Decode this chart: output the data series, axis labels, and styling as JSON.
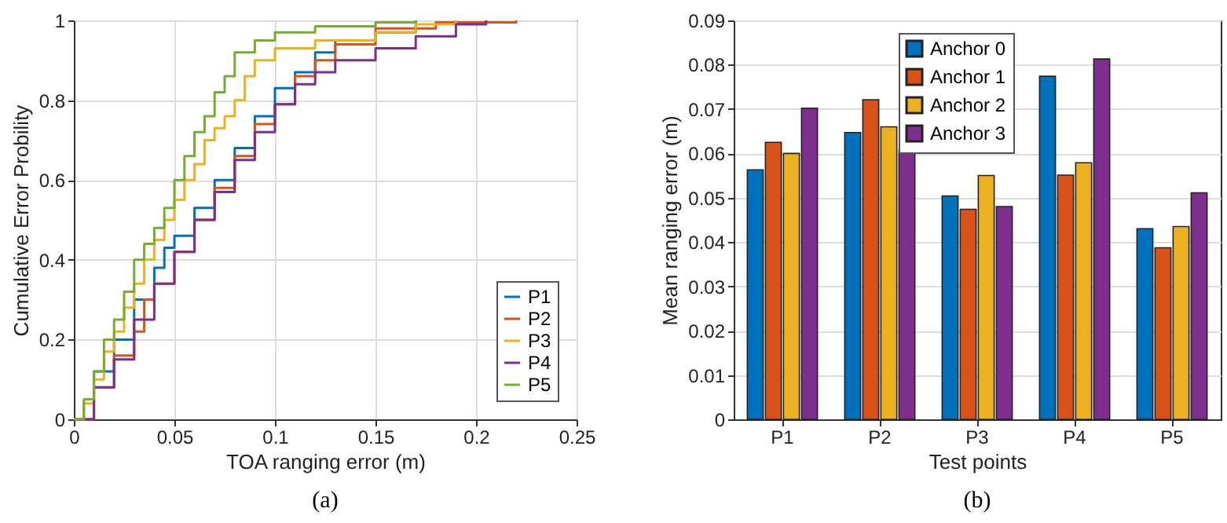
{
  "chart_data": [
    {
      "type": "step",
      "xlabel": "TOA ranging error (m)",
      "ylabel": "Cumulative Error Probility",
      "xlim": [
        0,
        0.25
      ],
      "xticks": [
        0,
        0.05,
        0.1,
        0.15,
        0.2,
        0.25
      ],
      "ylim": [
        0,
        1
      ],
      "yticks": [
        0,
        0.2,
        0.4,
        0.6,
        0.8,
        1
      ],
      "grid": true,
      "legend": "bottom right",
      "annotations": [
        "(a)"
      ],
      "series": [
        {
          "name": "P1",
          "color": "#0072bd",
          "x": [
            0,
            0.01,
            0.02,
            0.03,
            0.04,
            0.045,
            0.05,
            0.06,
            0.07,
            0.08,
            0.09,
            0.1,
            0.11,
            0.12,
            0.13,
            0.15,
            0.17
          ],
          "values": [
            0,
            0.12,
            0.2,
            0.3,
            0.38,
            0.43,
            0.46,
            0.53,
            0.6,
            0.68,
            0.76,
            0.83,
            0.87,
            0.92,
            0.95,
            0.97,
            1
          ]
        },
        {
          "name": "P2",
          "color": "#d95319",
          "x": [
            0,
            0.01,
            0.02,
            0.03,
            0.035,
            0.04,
            0.05,
            0.06,
            0.07,
            0.08,
            0.09,
            0.1,
            0.11,
            0.12,
            0.13,
            0.15,
            0.18,
            0.22
          ],
          "values": [
            0,
            0.08,
            0.16,
            0.22,
            0.3,
            0.34,
            0.42,
            0.5,
            0.58,
            0.66,
            0.74,
            0.79,
            0.86,
            0.9,
            0.94,
            0.98,
            0.995,
            1
          ]
        },
        {
          "name": "P3",
          "color": "#edb120",
          "x": [
            0,
            0.005,
            0.01,
            0.015,
            0.02,
            0.025,
            0.03,
            0.035,
            0.04,
            0.045,
            0.05,
            0.055,
            0.06,
            0.065,
            0.07,
            0.075,
            0.08,
            0.085,
            0.09,
            0.1,
            0.12,
            0.15,
            0.17,
            0.19
          ],
          "values": [
            0,
            0.04,
            0.1,
            0.17,
            0.22,
            0.28,
            0.34,
            0.4,
            0.45,
            0.5,
            0.55,
            0.6,
            0.64,
            0.7,
            0.73,
            0.76,
            0.8,
            0.86,
            0.9,
            0.93,
            0.95,
            0.97,
            0.99,
            1
          ]
        },
        {
          "name": "P4",
          "color": "#7e2f8e",
          "x": [
            0,
            0.01,
            0.02,
            0.03,
            0.04,
            0.05,
            0.06,
            0.07,
            0.08,
            0.09,
            0.1,
            0.11,
            0.12,
            0.13,
            0.15,
            0.17,
            0.19,
            0.205
          ],
          "values": [
            0,
            0.08,
            0.15,
            0.25,
            0.34,
            0.42,
            0.5,
            0.57,
            0.65,
            0.72,
            0.79,
            0.84,
            0.87,
            0.9,
            0.93,
            0.96,
            0.99,
            1
          ]
        },
        {
          "name": "P5",
          "color": "#77ac30",
          "x": [
            0,
            0.005,
            0.01,
            0.015,
            0.02,
            0.025,
            0.03,
            0.035,
            0.04,
            0.045,
            0.05,
            0.055,
            0.06,
            0.065,
            0.07,
            0.075,
            0.08,
            0.09,
            0.1,
            0.12,
            0.15,
            0.17
          ],
          "values": [
            0,
            0.05,
            0.12,
            0.2,
            0.25,
            0.32,
            0.4,
            0.44,
            0.48,
            0.53,
            0.6,
            0.66,
            0.72,
            0.76,
            0.82,
            0.86,
            0.92,
            0.95,
            0.97,
            0.985,
            0.995,
            1
          ]
        }
      ]
    },
    {
      "type": "bar",
      "xlabel": "Test points",
      "ylabel": "Mean ranging error (m)",
      "categories": [
        "P1",
        "P2",
        "P3",
        "P4",
        "P5"
      ],
      "ylim": [
        0,
        0.09
      ],
      "yticks": [
        0,
        0.01,
        0.02,
        0.03,
        0.04,
        0.05,
        0.06,
        0.07,
        0.08,
        0.09
      ],
      "grid": true,
      "legend": "top",
      "annotations": [
        "(b)"
      ],
      "series": [
        {
          "name": "Anchor 0",
          "color": "#0072bd",
          "values": [
            0.0563,
            0.0647,
            0.0504,
            0.0774,
            0.043
          ]
        },
        {
          "name": "Anchor 1",
          "color": "#d95319",
          "values": [
            0.0625,
            0.0721,
            0.0474,
            0.0551,
            0.0387
          ]
        },
        {
          "name": "Anchor 2",
          "color": "#edb120",
          "values": [
            0.06,
            0.066,
            0.055,
            0.0579,
            0.0435
          ]
        },
        {
          "name": "Anchor 3",
          "color": "#7e2f8e",
          "values": [
            0.0702,
            0.0609,
            0.048,
            0.0813,
            0.0511
          ]
        }
      ]
    }
  ]
}
